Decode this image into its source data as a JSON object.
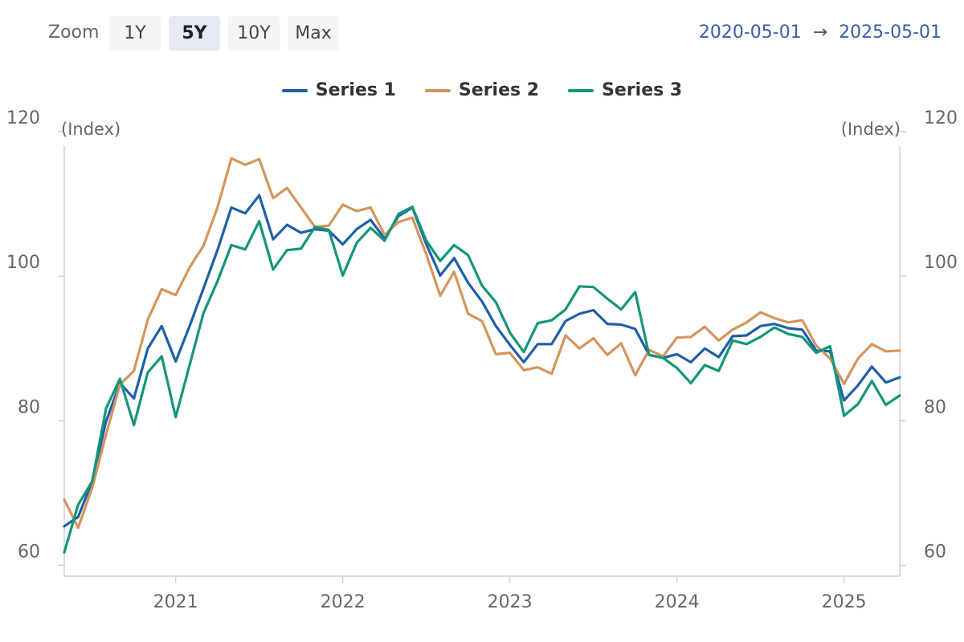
{
  "toolbar": {
    "zoom_label": "Zoom",
    "zoom_options": [
      "1Y",
      "5Y",
      "10Y",
      "Max"
    ],
    "zoom_selected": "5Y",
    "date_from": "2020-05-01",
    "date_arrow": "→",
    "date_to": "2025-05-01"
  },
  "colors": {
    "series1": "#1f5fa8",
    "series2": "#d4955c",
    "series3": "#12967a",
    "axis": "#c8d0e6",
    "date_text": "#3a5ea8"
  },
  "chart_data": {
    "type": "line",
    "title": "",
    "xlabel": "",
    "ylabel_left": "(Index)",
    "ylabel_right": "(Index)",
    "ylim": [
      58.5,
      118
    ],
    "yticks": [
      60,
      80,
      100,
      120
    ],
    "xlim": [
      "2020-05-01",
      "2025-05-01"
    ],
    "xticks": [
      "2021",
      "2022",
      "2023",
      "2024",
      "2025"
    ],
    "legend": "top-center",
    "grid": false,
    "x": [
      "2020-05",
      "2020-06",
      "2020-07",
      "2020-08",
      "2020-09",
      "2020-10",
      "2020-11",
      "2020-12",
      "2021-01",
      "2021-02",
      "2021-03",
      "2021-04",
      "2021-05",
      "2021-06",
      "2021-07",
      "2021-08",
      "2021-09",
      "2021-10",
      "2021-11",
      "2021-12",
      "2022-01",
      "2022-02",
      "2022-03",
      "2022-04",
      "2022-05",
      "2022-06",
      "2022-07",
      "2022-08",
      "2022-09",
      "2022-10",
      "2022-11",
      "2022-12",
      "2023-01",
      "2023-02",
      "2023-03",
      "2023-04",
      "2023-05",
      "2023-06",
      "2023-07",
      "2023-08",
      "2023-09",
      "2023-10",
      "2023-11",
      "2023-12",
      "2024-01",
      "2024-02",
      "2024-03",
      "2024-04",
      "2024-05",
      "2024-06",
      "2024-07",
      "2024-08",
      "2024-09",
      "2024-10",
      "2024-11",
      "2024-12",
      "2025-01",
      "2025-02",
      "2025-03",
      "2025-04",
      "2025-05"
    ],
    "series": [
      {
        "name": "Series 1",
        "color": "#1f5fa8",
        "values": [
          65.4,
          66.7,
          71.6,
          79.9,
          85.2,
          83.1,
          90.0,
          93.1,
          88.2,
          93.1,
          98.3,
          103.6,
          109.5,
          108.7,
          111.2,
          105.1,
          107.1,
          106.0,
          106.5,
          106.3,
          104.4,
          106.5,
          107.8,
          105.2,
          108.3,
          109.5,
          104.4,
          100.1,
          102.5,
          99.1,
          96.5,
          93.1,
          90.5,
          88.1,
          90.6,
          90.6,
          93.8,
          94.8,
          95.3,
          93.4,
          93.3,
          92.7,
          89.1,
          88.7,
          89.2,
          88.1,
          90.0,
          88.8,
          91.7,
          91.8,
          93.1,
          93.4,
          92.8,
          92.6,
          89.7,
          89.6,
          82.8,
          84.9,
          87.5,
          85.3,
          86.0
        ]
      },
      {
        "name": "Series 2",
        "color": "#d4955c",
        "values": [
          69.1,
          65.2,
          70.7,
          78.1,
          85.0,
          86.9,
          94.0,
          98.2,
          97.4,
          101.2,
          104.2,
          109.5,
          116.3,
          115.4,
          116.2,
          110.8,
          112.2,
          109.5,
          106.8,
          107.0,
          109.9,
          109.0,
          109.5,
          105.7,
          107.5,
          108.1,
          103.0,
          97.3,
          100.6,
          94.8,
          93.8,
          89.2,
          89.4,
          87.0,
          87.4,
          86.5,
          91.8,
          90.0,
          91.4,
          89.1,
          90.7,
          86.3,
          89.8,
          88.9,
          91.5,
          91.6,
          93.0,
          91.1,
          92.6,
          93.6,
          95.0,
          94.2,
          93.6,
          93.9,
          90.4,
          88.6,
          85.1,
          88.6,
          90.6,
          89.6,
          89.7
        ]
      },
      {
        "name": "Series 3",
        "color": "#12967a",
        "values": [
          61.8,
          68.4,
          71.6,
          81.7,
          85.8,
          79.4,
          86.7,
          88.9,
          80.5,
          87.7,
          94.9,
          99.3,
          104.3,
          103.7,
          107.6,
          100.9,
          103.6,
          103.8,
          106.8,
          106.4,
          100.1,
          104.6,
          106.7,
          104.9,
          108.6,
          109.6,
          104.9,
          102.1,
          104.3,
          102.9,
          98.7,
          96.4,
          92.2,
          89.5,
          93.5,
          93.9,
          95.4,
          98.6,
          98.5,
          96.9,
          95.4,
          97.8,
          89.1,
          88.7,
          87.3,
          85.2,
          87.7,
          86.9,
          91.1,
          90.6,
          91.6,
          92.9,
          92.0,
          91.6,
          89.4,
          90.3,
          80.7,
          82.3,
          85.5,
          82.2,
          83.5
        ]
      }
    ]
  }
}
